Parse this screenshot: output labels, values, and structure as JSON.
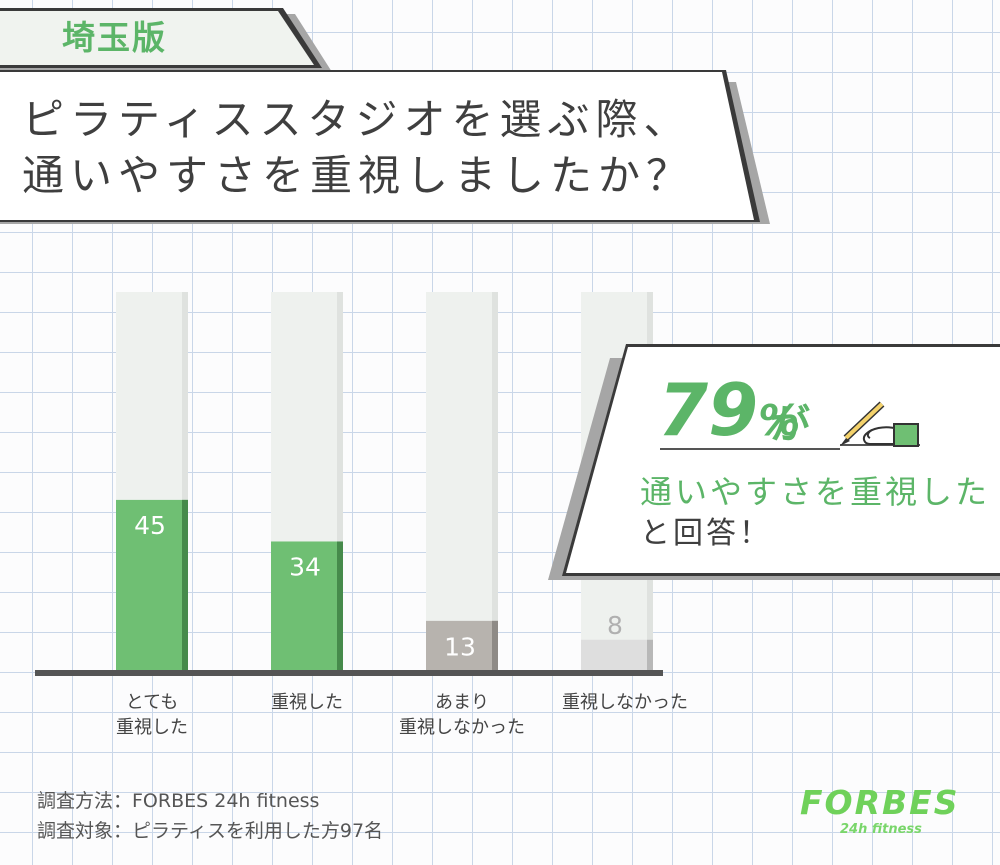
{
  "region_tag": "埼玉版",
  "title_lines": [
    "ピラティススタジオを選ぶ際、",
    "通いやすさを重視しましたか？"
  ],
  "chart_data": {
    "type": "bar",
    "categories": [
      "とても\n重視した",
      "重視した",
      "あまり\n重視しなかった",
      "重視しなかった"
    ],
    "values": [
      45,
      34,
      13,
      8
    ],
    "data_labels": [
      "45",
      "34",
      "13",
      "8"
    ],
    "title": "",
    "xlabel": "",
    "ylabel": "",
    "ylim": [
      0,
      100
    ],
    "colors": [
      "#6fbf73",
      "#6fbf73",
      "#b7b3ae",
      "#dedede"
    ],
    "shade_colors": [
      "#468a4b",
      "#468a4b",
      "#8e8a86",
      "#b8b8b8"
    ],
    "track_color": "#eef1ee",
    "grid": false,
    "legend": "none"
  },
  "callout": {
    "percent_number": "79",
    "percent_sign": "%",
    "particle": "が",
    "main_text": "通いやすさを重視した",
    "sub_text": "と回答！",
    "icon": "pencil-hand-icon"
  },
  "footer": {
    "method": "調査方法：FORBES 24h fitness",
    "target": "調査対象：ピラティスを利用した方97名"
  },
  "logo": {
    "name": "FORBES",
    "sub": "24h fitness"
  }
}
